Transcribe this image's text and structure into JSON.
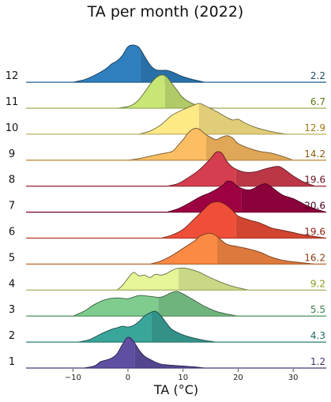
{
  "chart_data": {
    "type": "ridgeline",
    "title": "TA per month (2022)",
    "xlabel": "TA (°C)",
    "ylabel": "",
    "xlim": [
      -18.5,
      36
    ],
    "xticks": [
      -10,
      0,
      10,
      20,
      30
    ],
    "tick_labels": [
      "−10",
      "0",
      "10",
      "20",
      "30"
    ],
    "series": [
      {
        "name": "1",
        "label": "1.2",
        "mean": 1.2,
        "color": "#5e4fa2",
        "text_color": "#3b3270",
        "density": [
          [
            -8,
            0
          ],
          [
            -6,
            0.06
          ],
          [
            -5,
            0.16
          ],
          [
            -4,
            0.2
          ],
          [
            -3,
            0.25
          ],
          [
            -2,
            0.36
          ],
          [
            -1,
            0.6
          ],
          [
            0,
            0.78
          ],
          [
            1,
            0.68
          ],
          [
            2,
            0.46
          ],
          [
            3,
            0.3
          ],
          [
            4,
            0.22
          ],
          [
            5,
            0.15
          ],
          [
            6,
            0.1
          ],
          [
            7,
            0.08
          ],
          [
            8,
            0.07
          ],
          [
            10,
            0.05
          ],
          [
            12,
            0.03
          ],
          [
            14,
            0
          ]
        ]
      },
      {
        "name": "2",
        "label": "4.3",
        "mean": 4.3,
        "color": "#3aa59b",
        "text_color": "#1f6b63",
        "density": [
          [
            -9,
            0
          ],
          [
            -7,
            0.06
          ],
          [
            -5,
            0.2
          ],
          [
            -3,
            0.32
          ],
          [
            -2,
            0.36
          ],
          [
            -1,
            0.4
          ],
          [
            0,
            0.38
          ],
          [
            1,
            0.42
          ],
          [
            2,
            0.52
          ],
          [
            3,
            0.66
          ],
          [
            4,
            0.74
          ],
          [
            5,
            0.78
          ],
          [
            6,
            0.66
          ],
          [
            7,
            0.48
          ],
          [
            8,
            0.32
          ],
          [
            10,
            0.18
          ],
          [
            12,
            0.1
          ],
          [
            14,
            0.04
          ],
          [
            16,
            0
          ]
        ]
      },
      {
        "name": "3",
        "label": "5.5",
        "mean": 5.5,
        "color": "#7fcc8e",
        "text_color": "#3a7a48",
        "density": [
          [
            -10,
            0
          ],
          [
            -8,
            0.12
          ],
          [
            -6,
            0.3
          ],
          [
            -4,
            0.42
          ],
          [
            -2,
            0.46
          ],
          [
            0,
            0.44
          ],
          [
            2,
            0.52
          ],
          [
            4,
            0.5
          ],
          [
            6,
            0.48
          ],
          [
            8,
            0.6
          ],
          [
            9,
            0.62
          ],
          [
            10,
            0.56
          ],
          [
            12,
            0.4
          ],
          [
            14,
            0.24
          ],
          [
            16,
            0.12
          ],
          [
            18,
            0.05
          ],
          [
            20,
            0
          ]
        ]
      },
      {
        "name": "4",
        "label": "9.2",
        "mean": 9.2,
        "color": "#e6f598",
        "text_color": "#8a9a10",
        "density": [
          [
            -2,
            0
          ],
          [
            -1,
            0.12
          ],
          [
            0,
            0.3
          ],
          [
            1,
            0.45
          ],
          [
            2,
            0.36
          ],
          [
            3,
            0.38
          ],
          [
            4,
            0.32
          ],
          [
            5,
            0.4
          ],
          [
            6,
            0.38
          ],
          [
            7,
            0.42
          ],
          [
            8,
            0.5
          ],
          [
            9,
            0.55
          ],
          [
            10,
            0.56
          ],
          [
            11,
            0.54
          ],
          [
            12,
            0.5
          ],
          [
            13,
            0.45
          ],
          [
            14,
            0.38
          ],
          [
            16,
            0.25
          ],
          [
            18,
            0.14
          ],
          [
            20,
            0.06
          ],
          [
            22,
            0
          ]
        ]
      },
      {
        "name": "5",
        "label": "16.2",
        "mean": 16.2,
        "color": "#fb8a45",
        "text_color": "#8a3c10",
        "density": [
          [
            4,
            0
          ],
          [
            6,
            0.08
          ],
          [
            8,
            0.22
          ],
          [
            10,
            0.4
          ],
          [
            12,
            0.58
          ],
          [
            13,
            0.7
          ],
          [
            14,
            0.76
          ],
          [
            15,
            0.78
          ],
          [
            16,
            0.72
          ],
          [
            17,
            0.6
          ],
          [
            18,
            0.5
          ],
          [
            20,
            0.44
          ],
          [
            22,
            0.38
          ],
          [
            24,
            0.3
          ],
          [
            26,
            0.18
          ],
          [
            28,
            0.1
          ],
          [
            30,
            0.06
          ],
          [
            34,
            0
          ]
        ]
      },
      {
        "name": "6",
        "label": "19.6",
        "mean": 19.6,
        "color": "#ef4f38",
        "text_color": "#8a1e10",
        "density": [
          [
            6,
            0
          ],
          [
            8,
            0.08
          ],
          [
            10,
            0.22
          ],
          [
            12,
            0.48
          ],
          [
            14,
            0.76
          ],
          [
            15,
            0.88
          ],
          [
            16,
            0.92
          ],
          [
            17,
            0.9
          ],
          [
            18,
            0.82
          ],
          [
            19,
            0.7
          ],
          [
            20,
            0.56
          ],
          [
            22,
            0.46
          ],
          [
            24,
            0.38
          ],
          [
            26,
            0.26
          ],
          [
            28,
            0.2
          ],
          [
            30,
            0.14
          ],
          [
            32,
            0.08
          ],
          [
            36,
            0
          ]
        ]
      },
      {
        "name": "7",
        "label": "20.6",
        "mean": 20.6,
        "color": "#9e0142",
        "text_color": "#4a0020",
        "density": [
          [
            7,
            0
          ],
          [
            9,
            0.08
          ],
          [
            11,
            0.22
          ],
          [
            13,
            0.38
          ],
          [
            15,
            0.5
          ],
          [
            17,
            0.66
          ],
          [
            18,
            0.78
          ],
          [
            19,
            0.76
          ],
          [
            20,
            0.64
          ],
          [
            22,
            0.56
          ],
          [
            24,
            0.68
          ],
          [
            25,
            0.72
          ],
          [
            26,
            0.64
          ],
          [
            28,
            0.44
          ],
          [
            30,
            0.34
          ],
          [
            32,
            0.2
          ],
          [
            34,
            0.08
          ],
          [
            36,
            0
          ]
        ]
      },
      {
        "name": "8",
        "label": "19.6",
        "mean": 19.6,
        "color": "#d53e4f",
        "text_color": "#6a1024",
        "density": [
          [
            7,
            0
          ],
          [
            9,
            0.06
          ],
          [
            11,
            0.22
          ],
          [
            13,
            0.42
          ],
          [
            15,
            0.7
          ],
          [
            16,
            0.86
          ],
          [
            17,
            0.84
          ],
          [
            18,
            0.62
          ],
          [
            19,
            0.48
          ],
          [
            21,
            0.36
          ],
          [
            23,
            0.36
          ],
          [
            25,
            0.44
          ],
          [
            27,
            0.5
          ],
          [
            28,
            0.46
          ],
          [
            30,
            0.26
          ],
          [
            32,
            0.1
          ],
          [
            34,
            0
          ]
        ]
      },
      {
        "name": "9",
        "label": "14.2",
        "mean": 14.2,
        "color": "#fdbe63",
        "text_color": "#8a5a10",
        "density": [
          [
            0,
            0
          ],
          [
            2,
            0.04
          ],
          [
            4,
            0.1
          ],
          [
            6,
            0.16
          ],
          [
            8,
            0.22
          ],
          [
            9,
            0.36
          ],
          [
            10,
            0.52
          ],
          [
            11,
            0.7
          ],
          [
            12,
            0.8
          ],
          [
            13,
            0.78
          ],
          [
            14,
            0.66
          ],
          [
            15,
            0.58
          ],
          [
            16,
            0.52
          ],
          [
            17,
            0.58
          ],
          [
            18,
            0.62
          ],
          [
            19,
            0.56
          ],
          [
            20,
            0.42
          ],
          [
            22,
            0.3
          ],
          [
            24,
            0.22
          ],
          [
            26,
            0.18
          ],
          [
            28,
            0.1
          ],
          [
            30,
            0
          ]
        ]
      },
      {
        "name": "10",
        "label": "12.9",
        "mean": 12.9,
        "color": "#fee987",
        "text_color": "#a07a10",
        "density": [
          [
            2,
            0
          ],
          [
            4,
            0.08
          ],
          [
            6,
            0.24
          ],
          [
            8,
            0.48
          ],
          [
            10,
            0.62
          ],
          [
            12,
            0.74
          ],
          [
            13,
            0.78
          ],
          [
            14,
            0.72
          ],
          [
            16,
            0.58
          ],
          [
            18,
            0.42
          ],
          [
            19,
            0.36
          ],
          [
            20,
            0.38
          ],
          [
            21,
            0.3
          ],
          [
            23,
            0.18
          ],
          [
            25,
            0.1
          ],
          [
            27,
            0.04
          ],
          [
            29,
            0
          ]
        ]
      },
      {
        "name": "11",
        "label": "6.7",
        "mean": 6.7,
        "color": "#c8e676",
        "text_color": "#5a7a10",
        "density": [
          [
            -2,
            0
          ],
          [
            0,
            0.04
          ],
          [
            1,
            0.1
          ],
          [
            2,
            0.22
          ],
          [
            3,
            0.4
          ],
          [
            4,
            0.6
          ],
          [
            5,
            0.76
          ],
          [
            6,
            0.84
          ],
          [
            7,
            0.8
          ],
          [
            8,
            0.62
          ],
          [
            9,
            0.44
          ],
          [
            10,
            0.26
          ],
          [
            12,
            0.1
          ],
          [
            14,
            0.02
          ],
          [
            16,
            0
          ]
        ]
      },
      {
        "name": "12",
        "label": "2.2",
        "mean": 2.2,
        "color": "#2f7fbf",
        "text_color": "#1f4a6a",
        "density": [
          [
            -10,
            0
          ],
          [
            -8,
            0.06
          ],
          [
            -6,
            0.18
          ],
          [
            -4,
            0.34
          ],
          [
            -3,
            0.46
          ],
          [
            -2,
            0.54
          ],
          [
            -1,
            0.68
          ],
          [
            0,
            0.9
          ],
          [
            1,
            0.94
          ],
          [
            2,
            0.88
          ],
          [
            3,
            0.66
          ],
          [
            4,
            0.44
          ],
          [
            5,
            0.32
          ],
          [
            6,
            0.3
          ],
          [
            7,
            0.3
          ],
          [
            8,
            0.26
          ],
          [
            10,
            0.14
          ],
          [
            12,
            0.06
          ],
          [
            14,
            0
          ]
        ]
      }
    ]
  }
}
